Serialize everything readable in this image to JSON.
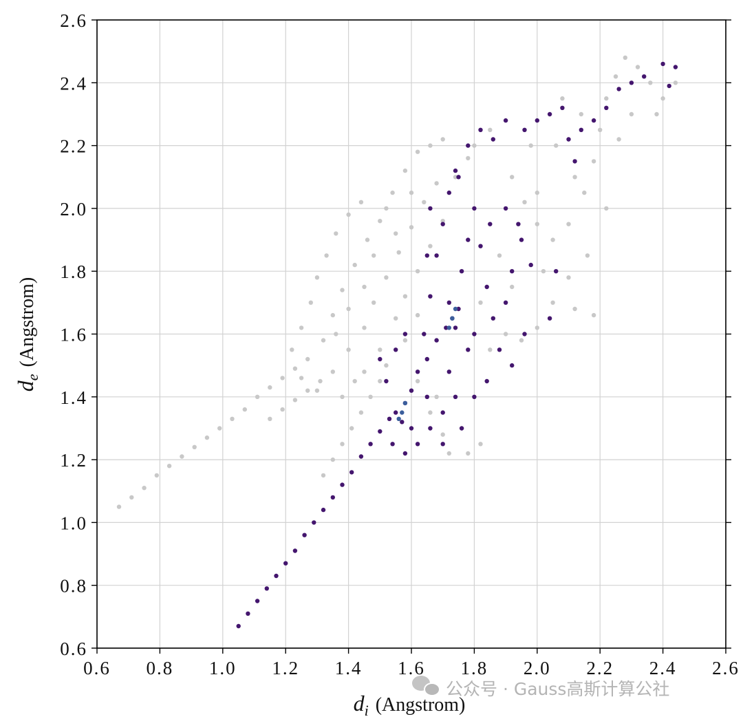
{
  "chart_data": {
    "type": "scatter",
    "title": "",
    "xlabel": {
      "symbol": "d",
      "subscript": "i",
      "unit": "(Angstrom)"
    },
    "ylabel": {
      "symbol": "d",
      "subscript": "e",
      "unit": "(Angstrom)"
    },
    "xlim": [
      0.6,
      2.6
    ],
    "ylim": [
      0.6,
      2.6
    ],
    "xticks": [
      "0.6",
      "0.8",
      "1.0",
      "1.2",
      "1.4",
      "1.6",
      "1.8",
      "2.0",
      "2.2",
      "2.4",
      "2.6"
    ],
    "yticks": [
      "0.6",
      "0.8",
      "1.0",
      "1.2",
      "1.4",
      "1.6",
      "1.8",
      "2.0",
      "2.2",
      "2.4",
      "2.6"
    ],
    "grid": true,
    "legend": "none",
    "series": [
      {
        "color": "#c8c8c8",
        "points": [
          [
            0.67,
            1.05
          ],
          [
            0.71,
            1.08
          ],
          [
            0.75,
            1.11
          ],
          [
            0.79,
            1.15
          ],
          [
            0.83,
            1.18
          ],
          [
            0.87,
            1.21
          ],
          [
            0.91,
            1.24
          ],
          [
            0.95,
            1.27
          ],
          [
            0.99,
            1.3
          ],
          [
            1.03,
            1.33
          ],
          [
            1.07,
            1.36
          ],
          [
            1.11,
            1.4
          ],
          [
            1.15,
            1.43
          ],
          [
            1.19,
            1.46
          ],
          [
            1.23,
            1.49
          ],
          [
            1.15,
            1.33
          ],
          [
            1.19,
            1.36
          ],
          [
            1.23,
            1.39
          ],
          [
            1.27,
            1.42
          ],
          [
            1.31,
            1.45
          ],
          [
            1.32,
            1.15
          ],
          [
            1.35,
            1.2
          ],
          [
            1.38,
            1.25
          ],
          [
            1.41,
            1.3
          ],
          [
            1.44,
            1.35
          ],
          [
            1.47,
            1.4
          ],
          [
            1.5,
            1.45
          ],
          [
            1.22,
            1.55
          ],
          [
            1.25,
            1.62
          ],
          [
            1.28,
            1.7
          ],
          [
            1.3,
            1.78
          ],
          [
            1.33,
            1.85
          ],
          [
            1.36,
            1.92
          ],
          [
            1.4,
            1.98
          ],
          [
            1.44,
            2.02
          ],
          [
            1.27,
            1.52
          ],
          [
            1.32,
            1.58
          ],
          [
            1.35,
            1.66
          ],
          [
            1.38,
            1.74
          ],
          [
            1.42,
            1.82
          ],
          [
            1.46,
            1.9
          ],
          [
            1.5,
            1.96
          ],
          [
            1.54,
            2.05
          ],
          [
            1.58,
            2.12
          ],
          [
            1.62,
            2.18
          ],
          [
            1.66,
            2.2
          ],
          [
            1.7,
            2.22
          ],
          [
            1.4,
            1.55
          ],
          [
            1.45,
            1.62
          ],
          [
            1.48,
            1.7
          ],
          [
            1.52,
            1.78
          ],
          [
            1.56,
            1.86
          ],
          [
            1.6,
            1.94
          ],
          [
            1.64,
            2.02
          ],
          [
            1.68,
            2.08
          ],
          [
            1.5,
            1.55
          ],
          [
            1.55,
            1.65
          ],
          [
            1.58,
            1.72
          ],
          [
            1.62,
            1.8
          ],
          [
            1.66,
            1.88
          ],
          [
            1.7,
            1.96
          ],
          [
            1.74,
            2.1
          ],
          [
            1.78,
            2.16
          ],
          [
            1.45,
            1.48
          ],
          [
            1.52,
            1.5
          ],
          [
            1.58,
            1.58
          ],
          [
            1.62,
            1.66
          ],
          [
            1.35,
            1.48
          ],
          [
            1.3,
            1.42
          ],
          [
            1.25,
            1.46
          ],
          [
            1.38,
            1.4
          ],
          [
            1.42,
            1.45
          ],
          [
            1.55,
            1.92
          ],
          [
            1.6,
            2.05
          ],
          [
            1.52,
            2.0
          ],
          [
            1.48,
            1.85
          ],
          [
            1.45,
            1.75
          ],
          [
            1.4,
            1.68
          ],
          [
            1.36,
            1.6
          ],
          [
            1.62,
            1.45
          ],
          [
            1.66,
            1.35
          ],
          [
            1.7,
            1.28
          ],
          [
            1.72,
            1.22
          ],
          [
            1.78,
            1.22
          ],
          [
            1.82,
            1.25
          ],
          [
            1.76,
            1.3
          ],
          [
            1.68,
            1.4
          ],
          [
            1.85,
            1.55
          ],
          [
            1.9,
            1.6
          ],
          [
            1.95,
            1.58
          ],
          [
            2.0,
            1.62
          ],
          [
            2.05,
            1.7
          ],
          [
            2.1,
            1.78
          ],
          [
            2.12,
            1.68
          ],
          [
            1.8,
            2.2
          ],
          [
            1.85,
            2.25
          ],
          [
            1.92,
            2.1
          ],
          [
            1.96,
            2.02
          ],
          [
            2.0,
            1.95
          ],
          [
            2.05,
            1.9
          ],
          [
            2.1,
            1.95
          ],
          [
            2.15,
            2.05
          ],
          [
            2.18,
            2.15
          ],
          [
            2.2,
            2.25
          ],
          [
            2.22,
            2.35
          ],
          [
            2.25,
            2.42
          ],
          [
            2.28,
            2.48
          ],
          [
            2.32,
            2.45
          ],
          [
            2.36,
            2.4
          ],
          [
            2.4,
            2.35
          ],
          [
            2.44,
            2.4
          ],
          [
            2.3,
            2.3
          ],
          [
            2.26,
            2.22
          ],
          [
            2.14,
            2.3
          ],
          [
            2.08,
            2.35
          ],
          [
            2.16,
            1.85
          ],
          [
            2.22,
            2.0
          ],
          [
            2.06,
            2.2
          ],
          [
            1.98,
            2.2
          ],
          [
            1.88,
            1.85
          ],
          [
            1.92,
            1.75
          ],
          [
            2.02,
            1.8
          ],
          [
            1.82,
            1.7
          ],
          [
            2.38,
            2.3
          ],
          [
            2.12,
            2.1
          ],
          [
            2.0,
            2.05
          ],
          [
            2.18,
            1.66
          ]
        ]
      },
      {
        "color": "#44166e",
        "points": [
          [
            1.05,
            0.67
          ],
          [
            1.08,
            0.71
          ],
          [
            1.11,
            0.75
          ],
          [
            1.14,
            0.79
          ],
          [
            1.17,
            0.83
          ],
          [
            1.2,
            0.87
          ],
          [
            1.23,
            0.91
          ],
          [
            1.26,
            0.96
          ],
          [
            1.29,
            1.0
          ],
          [
            1.32,
            1.04
          ],
          [
            1.35,
            1.08
          ],
          [
            1.38,
            1.12
          ],
          [
            1.41,
            1.16
          ],
          [
            1.44,
            1.21
          ],
          [
            1.47,
            1.25
          ],
          [
            1.5,
            1.29
          ],
          [
            1.53,
            1.33
          ],
          [
            1.55,
            1.35
          ],
          [
            1.58,
            1.38
          ],
          [
            1.57,
            1.32
          ],
          [
            1.6,
            1.42
          ],
          [
            1.62,
            1.48
          ],
          [
            1.65,
            1.52
          ],
          [
            1.68,
            1.58
          ],
          [
            1.71,
            1.62
          ],
          [
            1.73,
            1.65
          ],
          [
            1.75,
            1.68
          ],
          [
            1.74,
            1.62
          ],
          [
            1.72,
            1.7
          ],
          [
            1.52,
            1.45
          ],
          [
            1.55,
            1.55
          ],
          [
            1.58,
            1.6
          ],
          [
            1.5,
            1.52
          ],
          [
            1.54,
            1.25
          ],
          [
            1.58,
            1.22
          ],
          [
            1.62,
            1.25
          ],
          [
            1.66,
            1.3
          ],
          [
            1.7,
            1.35
          ],
          [
            1.74,
            1.4
          ],
          [
            1.72,
            1.48
          ],
          [
            1.65,
            1.4
          ],
          [
            1.6,
            1.3
          ],
          [
            1.64,
            1.6
          ],
          [
            1.66,
            1.72
          ],
          [
            1.68,
            1.85
          ],
          [
            1.7,
            1.95
          ],
          [
            1.72,
            2.05
          ],
          [
            1.74,
            2.12
          ],
          [
            1.66,
            2.0
          ],
          [
            1.65,
            1.85
          ],
          [
            1.76,
            1.8
          ],
          [
            1.78,
            1.9
          ],
          [
            1.8,
            2.0
          ],
          [
            1.82,
            1.88
          ],
          [
            1.84,
            1.75
          ],
          [
            1.86,
            1.65
          ],
          [
            1.88,
            1.55
          ],
          [
            1.8,
            1.6
          ],
          [
            1.78,
            1.55
          ],
          [
            1.9,
            1.7
          ],
          [
            1.92,
            1.8
          ],
          [
            1.95,
            1.9
          ],
          [
            1.98,
            1.82
          ],
          [
            1.94,
            1.95
          ],
          [
            1.9,
            2.0
          ],
          [
            1.85,
            1.95
          ],
          [
            1.75,
            2.1
          ],
          [
            1.78,
            2.2
          ],
          [
            1.82,
            2.25
          ],
          [
            1.86,
            2.22
          ],
          [
            1.9,
            2.28
          ],
          [
            1.96,
            2.25
          ],
          [
            2.0,
            2.28
          ],
          [
            2.04,
            2.3
          ],
          [
            2.08,
            2.32
          ],
          [
            2.1,
            2.22
          ],
          [
            2.12,
            2.15
          ],
          [
            2.14,
            2.25
          ],
          [
            2.18,
            2.28
          ],
          [
            2.22,
            2.32
          ],
          [
            2.26,
            2.38
          ],
          [
            2.3,
            2.4
          ],
          [
            2.34,
            2.42
          ],
          [
            2.4,
            2.46
          ],
          [
            2.42,
            2.39
          ],
          [
            2.44,
            2.45
          ],
          [
            2.06,
            1.8
          ],
          [
            2.04,
            1.65
          ],
          [
            1.96,
            1.6
          ],
          [
            1.92,
            1.5
          ],
          [
            1.84,
            1.45
          ],
          [
            1.8,
            1.4
          ],
          [
            1.76,
            1.3
          ],
          [
            1.7,
            1.25
          ]
        ]
      },
      {
        "color": "#3b5e9c",
        "points": [
          [
            1.73,
            1.65
          ],
          [
            1.72,
            1.62
          ],
          [
            1.74,
            1.68
          ],
          [
            1.57,
            1.35
          ],
          [
            1.58,
            1.38
          ],
          [
            1.56,
            1.33
          ]
        ]
      }
    ]
  },
  "watermark": {
    "text": "公众号 · Gauss高斯计算公社",
    "icon": "wechat-icon"
  }
}
